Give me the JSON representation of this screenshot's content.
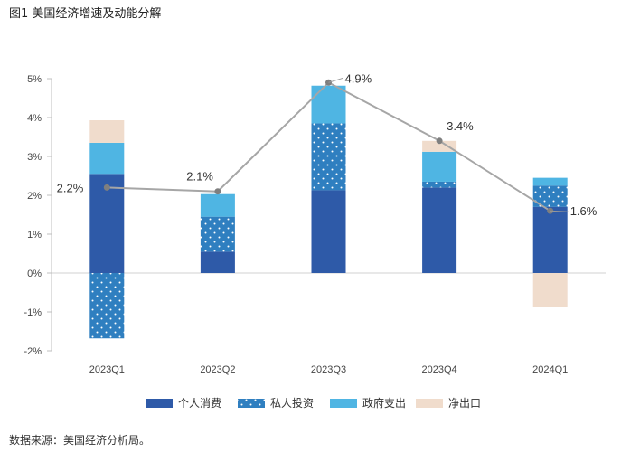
{
  "figure": {
    "title": "图1 美国经济增速及动能分解",
    "source": "数据来源：美国经济分析局。"
  },
  "colors": {
    "personal_consumption": "#2e5aa8",
    "private_investment": "#2f7fc0",
    "government": "#4fb5e3",
    "net_exports": "#f0dccc",
    "line": "#a6a6a6"
  },
  "chart_data": {
    "type": "bar",
    "stacked": true,
    "categories": [
      "2023Q1",
      "2023Q2",
      "2023Q3",
      "2023Q4",
      "2024Q1"
    ],
    "series": [
      {
        "name": "个人消费",
        "pattern": "solid",
        "values": [
          2.55,
          0.55,
          2.13,
          2.2,
          1.7
        ]
      },
      {
        "name": "私人投资",
        "pattern": "dots",
        "values": [
          -1.68,
          0.9,
          1.72,
          0.15,
          0.55
        ]
      },
      {
        "name": "政府支出",
        "pattern": "solid",
        "values": [
          0.8,
          0.58,
          0.97,
          0.77,
          0.2
        ]
      },
      {
        "name": "净出口",
        "pattern": "solid",
        "values": [
          0.58,
          0.0,
          0.0,
          0.28,
          -0.86
        ]
      }
    ],
    "line": {
      "values": [
        2.2,
        2.1,
        4.9,
        3.4,
        1.6
      ],
      "labels": [
        "2.2%",
        "2.1%",
        "4.9%",
        "3.4%",
        "1.6%"
      ]
    },
    "ylim": [
      -2,
      5
    ],
    "yticks": [
      "-2%",
      "-1%",
      "0%",
      "1%",
      "2%",
      "3%",
      "4%",
      "5%"
    ],
    "legend_position": "bottom"
  }
}
